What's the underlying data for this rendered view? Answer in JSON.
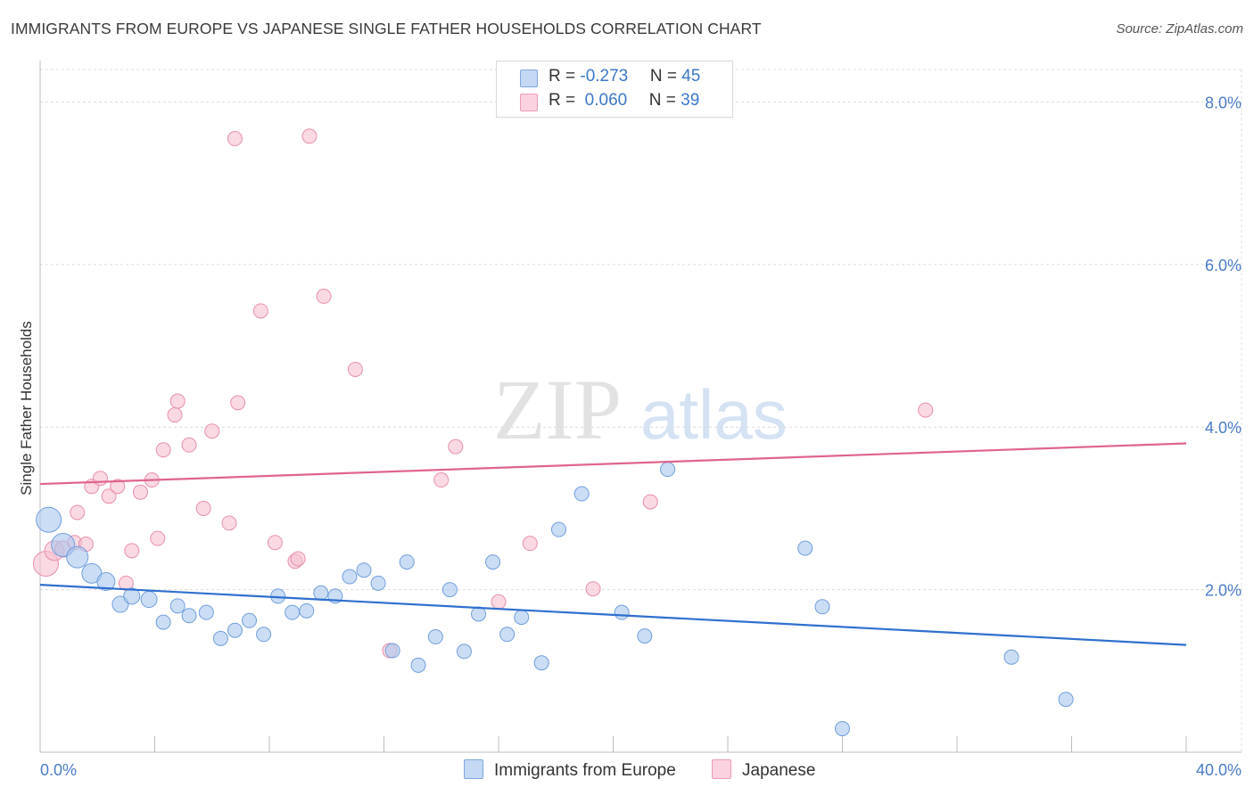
{
  "title": "IMMIGRANTS FROM EUROPE VS JAPANESE SINGLE FATHER HOUSEHOLDS CORRELATION CHART",
  "source": "Source: ZipAtlas.com",
  "watermark": {
    "zip": "ZIP",
    "atlas": "atlas"
  },
  "legend": {
    "rows": [
      {
        "r_label": "R = ",
        "r_value": "-0.273",
        "n_label": "N = ",
        "n_value": "45",
        "color": "#a9c6ee"
      },
      {
        "r_label": "R = ",
        "r_value": " 0.060",
        "n_label": "N = ",
        "n_value": "39",
        "color": "#f6b8cb"
      }
    ]
  },
  "bottom_legend": {
    "europe": "Immigrants from Europe",
    "japanese": "Japanese"
  },
  "colors": {
    "europe_fill": "#a9c6ee",
    "europe_stroke": "#6f9fdc",
    "europe_line": "#2f6fcf",
    "japanese_fill": "#f6c0d1",
    "japanese_stroke": "#e88fac",
    "japanese_line": "#e0648c",
    "grid": "#dcdcdc",
    "tick_text": "#4a7cc7"
  },
  "chart_data": {
    "type": "scatter",
    "title": "IMMIGRANTS FROM EUROPE VS JAPANESE SINGLE FATHER HOUSEHOLDS CORRELATION CHART",
    "xlabel": "",
    "ylabel": "Single Father Households",
    "xlim": [
      0,
      40
    ],
    "ylim": [
      0,
      8.4
    ],
    "x_tick_labels": [
      "0.0%",
      "40.0%"
    ],
    "y_ticks": [
      2,
      4,
      6,
      8
    ],
    "y_tick_labels": [
      "2.0%",
      "4.0%",
      "6.0%",
      "8.0%"
    ],
    "grid": true,
    "legend_position": "top-center",
    "series": [
      {
        "name": "Immigrants from Europe",
        "trend": {
          "x": [
            0,
            40
          ],
          "y": [
            2.06,
            1.32
          ]
        },
        "points": [
          {
            "x": 0.3,
            "y": 2.86,
            "s": 14
          },
          {
            "x": 0.8,
            "y": 2.55,
            "s": 13
          },
          {
            "x": 1.3,
            "y": 2.4,
            "s": 12
          },
          {
            "x": 1.8,
            "y": 2.2,
            "s": 11
          },
          {
            "x": 2.3,
            "y": 2.1,
            "s": 10
          },
          {
            "x": 2.8,
            "y": 1.82,
            "s": 9
          },
          {
            "x": 3.2,
            "y": 1.92,
            "s": 9
          },
          {
            "x": 3.8,
            "y": 1.88,
            "s": 9
          },
          {
            "x": 4.3,
            "y": 1.6,
            "s": 8
          },
          {
            "x": 4.8,
            "y": 1.8,
            "s": 8
          },
          {
            "x": 5.2,
            "y": 1.68,
            "s": 8
          },
          {
            "x": 5.8,
            "y": 1.72,
            "s": 8
          },
          {
            "x": 6.3,
            "y": 1.4,
            "s": 8
          },
          {
            "x": 6.8,
            "y": 1.5,
            "s": 8
          },
          {
            "x": 7.3,
            "y": 1.62,
            "s": 8
          },
          {
            "x": 7.8,
            "y": 1.45,
            "s": 8
          },
          {
            "x": 8.3,
            "y": 1.92,
            "s": 8
          },
          {
            "x": 8.8,
            "y": 1.72,
            "s": 8
          },
          {
            "x": 9.3,
            "y": 1.74,
            "s": 8
          },
          {
            "x": 9.8,
            "y": 1.96,
            "s": 8
          },
          {
            "x": 10.3,
            "y": 1.92,
            "s": 8
          },
          {
            "x": 10.8,
            "y": 2.16,
            "s": 8
          },
          {
            "x": 11.3,
            "y": 2.24,
            "s": 8
          },
          {
            "x": 11.8,
            "y": 2.08,
            "s": 8
          },
          {
            "x": 12.3,
            "y": 1.25,
            "s": 8
          },
          {
            "x": 12.8,
            "y": 2.34,
            "s": 8
          },
          {
            "x": 13.2,
            "y": 1.07,
            "s": 8
          },
          {
            "x": 13.8,
            "y": 1.42,
            "s": 8
          },
          {
            "x": 14.3,
            "y": 2.0,
            "s": 8
          },
          {
            "x": 14.8,
            "y": 1.24,
            "s": 8
          },
          {
            "x": 15.3,
            "y": 1.7,
            "s": 8
          },
          {
            "x": 15.8,
            "y": 2.34,
            "s": 8
          },
          {
            "x": 16.3,
            "y": 1.45,
            "s": 8
          },
          {
            "x": 16.8,
            "y": 1.66,
            "s": 8
          },
          {
            "x": 17.5,
            "y": 1.1,
            "s": 8
          },
          {
            "x": 18.1,
            "y": 2.74,
            "s": 8
          },
          {
            "x": 18.9,
            "y": 3.18,
            "s": 8
          },
          {
            "x": 20.3,
            "y": 1.72,
            "s": 8
          },
          {
            "x": 21.1,
            "y": 1.43,
            "s": 8
          },
          {
            "x": 21.9,
            "y": 3.48,
            "s": 8
          },
          {
            "x": 26.7,
            "y": 2.51,
            "s": 8
          },
          {
            "x": 27.3,
            "y": 1.79,
            "s": 8
          },
          {
            "x": 28.0,
            "y": 0.29,
            "s": 8
          },
          {
            "x": 33.9,
            "y": 1.17,
            "s": 8
          },
          {
            "x": 35.8,
            "y": 0.65,
            "s": 8
          }
        ]
      },
      {
        "name": "Japanese",
        "trend": {
          "x": [
            0,
            40
          ],
          "y": [
            3.3,
            3.8
          ]
        },
        "points": [
          {
            "x": 0.2,
            "y": 2.32,
            "s": 14
          },
          {
            "x": 0.5,
            "y": 2.48,
            "s": 11
          },
          {
            "x": 0.8,
            "y": 2.5,
            "s": 9
          },
          {
            "x": 1.2,
            "y": 2.58,
            "s": 8
          },
          {
            "x": 1.3,
            "y": 2.95,
            "s": 8
          },
          {
            "x": 1.6,
            "y": 2.56,
            "s": 8
          },
          {
            "x": 1.8,
            "y": 3.27,
            "s": 8
          },
          {
            "x": 2.1,
            "y": 3.37,
            "s": 8
          },
          {
            "x": 2.4,
            "y": 3.15,
            "s": 8
          },
          {
            "x": 2.7,
            "y": 3.27,
            "s": 8
          },
          {
            "x": 3.0,
            "y": 2.08,
            "s": 8
          },
          {
            "x": 3.2,
            "y": 2.48,
            "s": 8
          },
          {
            "x": 3.5,
            "y": 3.2,
            "s": 8
          },
          {
            "x": 3.9,
            "y": 3.35,
            "s": 8
          },
          {
            "x": 4.1,
            "y": 2.63,
            "s": 8
          },
          {
            "x": 4.3,
            "y": 3.72,
            "s": 8
          },
          {
            "x": 4.7,
            "y": 4.15,
            "s": 8
          },
          {
            "x": 4.8,
            "y": 4.32,
            "s": 8
          },
          {
            "x": 5.2,
            "y": 3.78,
            "s": 8
          },
          {
            "x": 5.7,
            "y": 3.0,
            "s": 8
          },
          {
            "x": 6.0,
            "y": 3.95,
            "s": 8
          },
          {
            "x": 6.6,
            "y": 2.82,
            "s": 8
          },
          {
            "x": 6.8,
            "y": 7.55,
            "s": 8
          },
          {
            "x": 6.9,
            "y": 4.3,
            "s": 8
          },
          {
            "x": 7.7,
            "y": 5.43,
            "s": 8
          },
          {
            "x": 8.2,
            "y": 2.58,
            "s": 8
          },
          {
            "x": 8.9,
            "y": 2.35,
            "s": 8
          },
          {
            "x": 9.0,
            "y": 2.38,
            "s": 8
          },
          {
            "x": 9.4,
            "y": 7.58,
            "s": 8
          },
          {
            "x": 9.9,
            "y": 5.61,
            "s": 8
          },
          {
            "x": 11.0,
            "y": 4.71,
            "s": 8
          },
          {
            "x": 12.2,
            "y": 1.25,
            "s": 8
          },
          {
            "x": 14.0,
            "y": 3.35,
            "s": 8
          },
          {
            "x": 14.5,
            "y": 3.76,
            "s": 8
          },
          {
            "x": 16.0,
            "y": 1.85,
            "s": 8
          },
          {
            "x": 17.1,
            "y": 2.57,
            "s": 8
          },
          {
            "x": 19.3,
            "y": 2.01,
            "s": 8
          },
          {
            "x": 21.3,
            "y": 3.08,
            "s": 8
          },
          {
            "x": 30.9,
            "y": 4.21,
            "s": 8
          }
        ]
      }
    ]
  }
}
